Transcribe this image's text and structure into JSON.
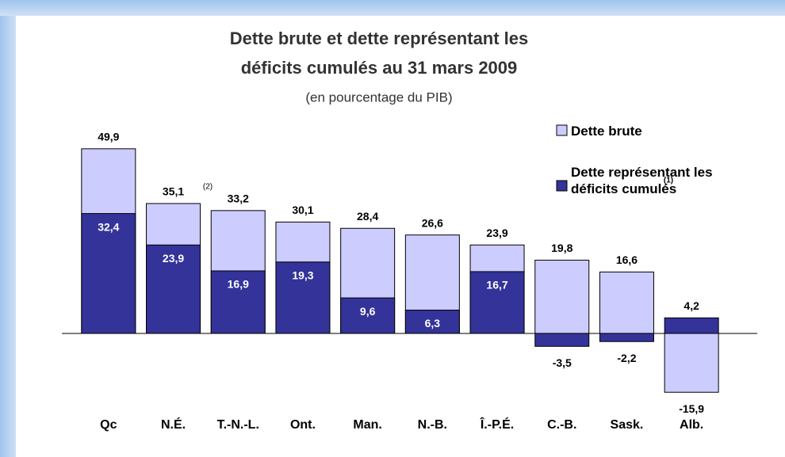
{
  "chart_data": {
    "type": "overlap-bar",
    "title": [
      "Dette brute et dette représentant les",
      "déficits cumulés au 31 mars 2009"
    ],
    "subtitle": "(en pourcentage du PIB)",
    "categories": [
      "Qc",
      "N.É.",
      "T.-N.-L.",
      "Ont.",
      "Man.",
      "N.-B.",
      "Î.-P.É.",
      "C.-B.",
      "Sask.",
      "Alb."
    ],
    "series": [
      {
        "name": "Dette brute",
        "color": "#ccccff",
        "values": [
          49.9,
          35.1,
          33.2,
          30.1,
          28.4,
          26.6,
          23.9,
          19.8,
          16.6,
          -15.9
        ],
        "value_labels": [
          "49,9",
          "35,1",
          "33,2",
          "30,1",
          "28,4",
          "26,6",
          "23,9",
          "19,8",
          "16,6",
          "-15,9"
        ]
      },
      {
        "name": "Dette représentant les déficits cumulés",
        "color": "#333399",
        "values": [
          32.4,
          23.9,
          16.9,
          19.3,
          9.6,
          6.3,
          16.7,
          -3.5,
          -2.2,
          4.2
        ],
        "value_labels": [
          "32,4",
          "23,9",
          "16,9",
          "19,3",
          "9,6",
          "6,3",
          "16,7",
          "-3,5",
          "-2,2",
          "4,2"
        ]
      }
    ],
    "annotations": [
      "(2)",
      "(1)"
    ],
    "ylim": [
      -20,
      55
    ]
  }
}
